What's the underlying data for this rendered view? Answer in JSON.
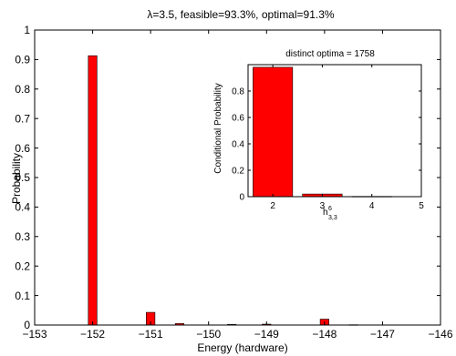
{
  "chart_data": [
    {
      "type": "bar",
      "title": "λ=3.5, feasible=93.3%, optimal=91.3%",
      "xlabel": "Energy (hardware)",
      "ylabel": "Probability",
      "xlim": [
        -153,
        -146
      ],
      "ylim": [
        0,
        1
      ],
      "xticks": [
        -153,
        -152,
        -151,
        -150,
        -149,
        -148,
        -147,
        -146
      ],
      "xtick_labels": [
        "−153",
        "−152",
        "−151",
        "−150",
        "−149",
        "−148",
        "−147",
        "−146"
      ],
      "yticks": [
        0,
        0.1,
        0.2,
        0.3,
        0.4,
        0.5,
        0.6,
        0.7,
        0.8,
        0.9,
        1
      ],
      "ytick_labels": [
        "0",
        "0.1",
        "0.2",
        "0.3",
        "0.4",
        "0.5",
        "0.6",
        "0.7",
        "0.8",
        "0.9",
        "1"
      ],
      "bar_width": 0.15,
      "x": [
        -152,
        -151,
        -150.5,
        -149.6,
        -149,
        -148,
        -147.5
      ],
      "values": [
        0.913,
        0.043,
        0.005,
        0.002,
        0.003,
        0.02,
        0.001
      ],
      "color": "#ff0000",
      "grid": false
    },
    {
      "type": "bar",
      "title": "distinct optima = 1758",
      "xlabel": "h",
      "xlabel_superscript": "6",
      "xlabel_subscript": "3,3",
      "ylabel": "Conditional Probability",
      "xlim": [
        1.5,
        5
      ],
      "ylim": [
        0,
        1
      ],
      "xticks": [
        2,
        3,
        4,
        5
      ],
      "xtick_labels": [
        "2",
        "3",
        "4",
        "5"
      ],
      "yticks": [
        0,
        0.2,
        0.4,
        0.6,
        0.8
      ],
      "ytick_labels": [
        "0",
        "0.2",
        "0.4",
        "0.6",
        "0.8"
      ],
      "bar_width": 0.8,
      "x": [
        2,
        3,
        4
      ],
      "values": [
        0.98,
        0.02,
        0.002
      ],
      "color": "#ff0000",
      "grid": false
    }
  ]
}
